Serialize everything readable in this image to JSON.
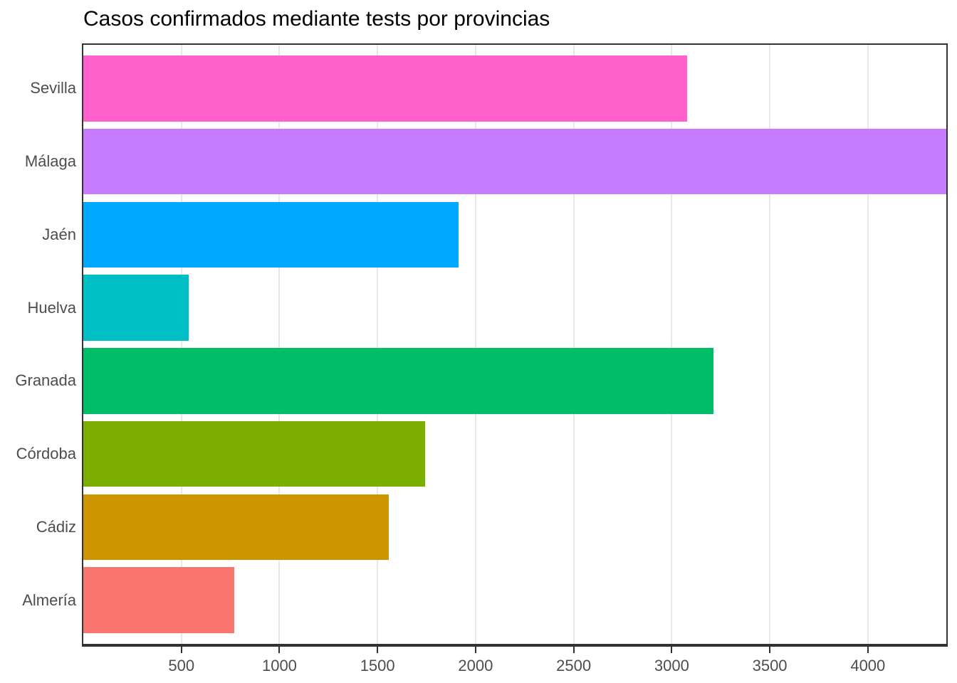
{
  "chart_data": {
    "type": "bar",
    "orientation": "horizontal",
    "title": "Casos confirmados mediante tests por provincias",
    "categories": [
      "Sevilla",
      "Málaga",
      "Jaén",
      "Huelva",
      "Granada",
      "Córdoba",
      "Cádiz",
      "Almería"
    ],
    "values": [
      3077,
      4400,
      1912,
      536,
      3212,
      1741,
      1556,
      768
    ],
    "colors": [
      "#FF61CC",
      "#C77CFF",
      "#00A9FF",
      "#00BFC4",
      "#00BE67",
      "#7CAE00",
      "#CD9600",
      "#F8766D"
    ],
    "xlabel": "",
    "ylabel": "",
    "xlim": [
      0,
      4400
    ],
    "x_ticks": [
      500,
      1000,
      1500,
      2000,
      2500,
      3000,
      3500,
      4000
    ],
    "grid": "major-x-only",
    "legend": "none",
    "bar_width_frac": 0.9,
    "styles": {
      "grid_color": "#E8E8E8",
      "border_color": "#333333",
      "axis_label_color": "#4D4D4D",
      "title_color": "#000000",
      "panel_background": "#ffffff"
    }
  }
}
